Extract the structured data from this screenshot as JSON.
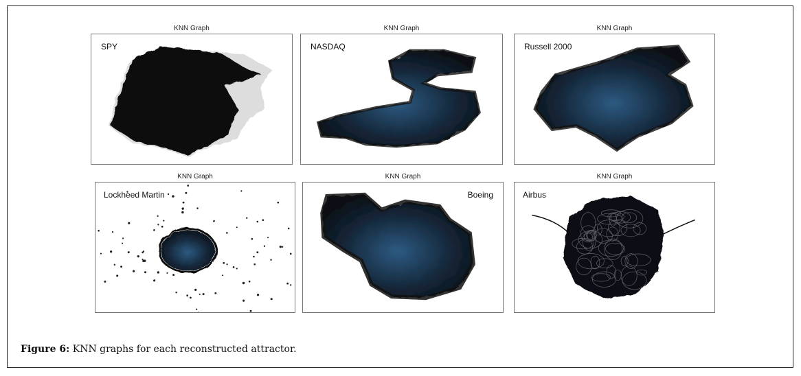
{
  "figure": {
    "panels": [
      {
        "title": "KNN Graph",
        "label": "SPY"
      },
      {
        "title": "KNN Graph",
        "label": "NASDAQ"
      },
      {
        "title": "KNN Graph",
        "label": "Russell 2000"
      },
      {
        "title": "KNN Graph",
        "label": "Lockheed Martin"
      },
      {
        "title": "KNN Graph",
        "label": "Boeing"
      },
      {
        "title": "KNN Graph",
        "label": "Airbus"
      }
    ],
    "colors": {
      "edge": "#111111",
      "node_core": "#2a4f73"
    }
  },
  "caption": {
    "prefix": "Figure 6:",
    "text": " KNN graphs for each reconstructed attractor."
  }
}
